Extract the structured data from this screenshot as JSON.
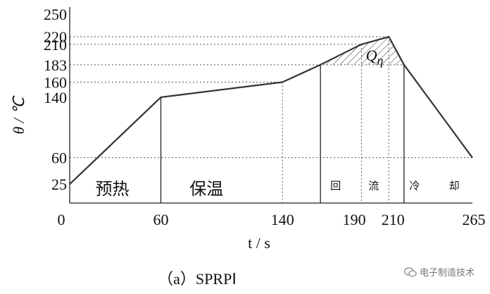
{
  "chart_data": {
    "type": "line",
    "title": "",
    "xlabel": "t / s",
    "ylabel": "θ / ℃",
    "xlim": [
      0,
      265
    ],
    "ylim": [
      0,
      250
    ],
    "x_ticks": [
      0,
      60,
      140,
      190,
      210,
      265
    ],
    "x_tick_labels": [
      "0",
      "60",
      "140",
      "190",
      "210",
      "265"
    ],
    "y_ticks": [
      25,
      60,
      140,
      160,
      183,
      210,
      220,
      250
    ],
    "series": [
      {
        "points": [
          {
            "x": 0,
            "y": 25
          },
          {
            "x": 60,
            "y": 140
          },
          {
            "x": 140,
            "y": 160
          },
          {
            "x": 165,
            "y": 183
          },
          {
            "x": 192,
            "y": 210
          },
          {
            "x": 210,
            "y": 220
          },
          {
            "x": 220,
            "y": 183
          },
          {
            "x": 265,
            "y": 60
          }
        ]
      }
    ],
    "zones": [
      {
        "label": "预热",
        "x_from": 0,
        "x_to": 60
      },
      {
        "label": "保温",
        "x_from": 60,
        "x_to": 165
      },
      {
        "label": "回",
        "x_from": 165,
        "x_to": 220
      },
      {
        "label": "流",
        "x_from": 165,
        "x_to": 220
      },
      {
        "label": "冷",
        "x_from": 220,
        "x_to": 265
      },
      {
        "label": "却",
        "x_from": 220,
        "x_to": 265
      }
    ],
    "annotation": {
      "label": "Q",
      "subscript": "η"
    }
  },
  "caption": "（a）SPRPⅠ",
  "watermark": "电子制造技术"
}
